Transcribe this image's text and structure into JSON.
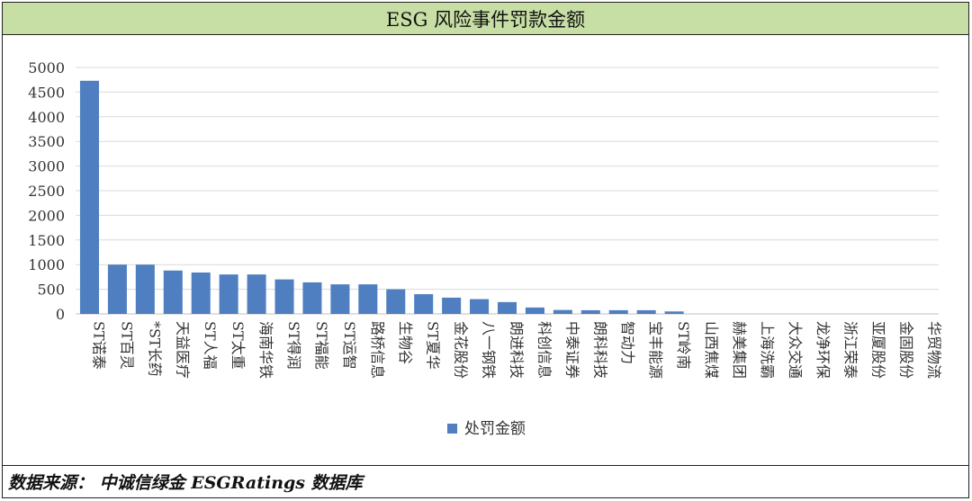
{
  "header": {
    "title": "ESG 风险事件罚款金额"
  },
  "footer": {
    "source": "数据来源： 中诚信绿金 ESGRatings 数据库"
  },
  "chart_data": {
    "type": "bar",
    "categories": [
      "ST诺泰",
      "ST百灵",
      "*ST长药",
      "天益医疗",
      "ST人福",
      "ST太重",
      "海南华铁",
      "ST得润",
      "ST福能",
      "ST运智",
      "路桥信息",
      "生物谷",
      "ST夏华",
      "金花股份",
      "八一钢铁",
      "朗进科技",
      "科创信息",
      "中泰证券",
      "朗科科技",
      "智动力",
      "宝丰能源",
      "ST岭南",
      "山西焦煤",
      "赫美集团",
      "上海洗霸",
      "大众交通",
      "龙净环保",
      "浙江荣泰",
      "亚厦股份",
      "金固股份",
      "华贸物流"
    ],
    "series": [
      {
        "name": "处罚金额",
        "color": "#4f7fc0",
        "values": [
          4730,
          1000,
          1000,
          880,
          840,
          800,
          800,
          700,
          640,
          600,
          600,
          500,
          400,
          330,
          300,
          240,
          130,
          80,
          75,
          75,
          75,
          50,
          0,
          0,
          0,
          0,
          0,
          0,
          0,
          0,
          0
        ]
      }
    ],
    "ylim": [
      0,
      5000
    ],
    "yticks": [
      0,
      500,
      1000,
      1500,
      2000,
      2500,
      3000,
      3500,
      4000,
      4500,
      5000
    ],
    "grid": true,
    "legend": "bottom-center",
    "xlabel": "",
    "ylabel": ""
  }
}
